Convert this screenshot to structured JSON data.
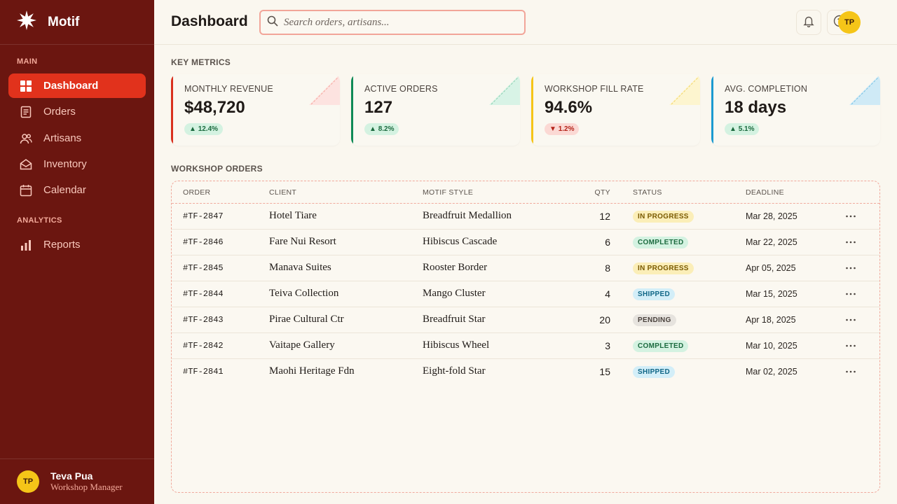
{
  "app": {
    "name": "Motif"
  },
  "sidebar": {
    "sections": {
      "main": "MAIN",
      "analytics": "ANALYTICS"
    },
    "items": [
      {
        "label": "Dashboard",
        "icon": "grid-icon",
        "active": true
      },
      {
        "label": "Orders",
        "icon": "document-icon"
      },
      {
        "label": "Artisans",
        "icon": "users-icon"
      },
      {
        "label": "Inventory",
        "icon": "envelope-icon"
      },
      {
        "label": "Calendar",
        "icon": "calendar-icon"
      },
      {
        "label": "Reports",
        "icon": "bar-chart-icon"
      }
    ],
    "user": {
      "initials": "TP",
      "name": "Teva Pua",
      "role": "Workshop Manager"
    }
  },
  "header": {
    "title": "Dashboard",
    "search_placeholder": "Search orders, artisans...",
    "avatar_initials": "TP"
  },
  "metrics": {
    "title": "KEY METRICS",
    "cards": [
      {
        "label": "MONTHLY REVENUE",
        "value": "$48,720",
        "change": "12.4%",
        "direction": "up",
        "accent": "#d9301e"
      },
      {
        "label": "ACTIVE ORDERS",
        "value": "127",
        "change": "8.2%",
        "direction": "up",
        "accent": "#0f8a56"
      },
      {
        "label": "WORKSHOP FILL RATE",
        "value": "94.6%",
        "change": "1.2%",
        "direction": "down",
        "accent": "#f5c518"
      },
      {
        "label": "AVG. COMPLETION",
        "value": "18 days",
        "change": "5.1%",
        "direction": "up",
        "accent": "#1b9ad1"
      }
    ]
  },
  "orders": {
    "title": "WORKSHOP ORDERS",
    "columns": {
      "order": "ORDER",
      "client": "CLIENT",
      "style": "MOTIF STYLE",
      "qty": "QTY",
      "status": "STATUS",
      "deadline": "DEADLINE"
    },
    "rows": [
      {
        "order": "#TF-2847",
        "client": "Hotel Tiare",
        "style": "Breadfruit Medallion",
        "qty": "12",
        "status": "IN PROGRESS",
        "status_type": "progress",
        "deadline": "Mar 28, 2025"
      },
      {
        "order": "#TF-2846",
        "client": "Fare Nui Resort",
        "style": "Hibiscus Cascade",
        "qty": "6",
        "status": "COMPLETED",
        "status_type": "completed",
        "deadline": "Mar 22, 2025"
      },
      {
        "order": "#TF-2845",
        "client": "Manava Suites",
        "style": "Rooster Border",
        "qty": "8",
        "status": "IN PROGRESS",
        "status_type": "progress",
        "deadline": "Apr 05, 2025"
      },
      {
        "order": "#TF-2844",
        "client": "Teiva Collection",
        "style": "Mango Cluster",
        "qty": "4",
        "status": "SHIPPED",
        "status_type": "shipped",
        "deadline": "Mar 15, 2025"
      },
      {
        "order": "#TF-2843",
        "client": "Pirae Cultural Ctr",
        "style": "Breadfruit Star",
        "qty": "20",
        "status": "PENDING",
        "status_type": "pending",
        "deadline": "Apr 18, 2025"
      },
      {
        "order": "#TF-2842",
        "client": "Vaitape Gallery",
        "style": "Hibiscus Wheel",
        "qty": "3",
        "status": "COMPLETED",
        "status_type": "completed",
        "deadline": "Mar 10, 2025"
      },
      {
        "order": "#TF-2841",
        "client": "Maohi Heritage Fdn",
        "style": "Eight-fold Star",
        "qty": "15",
        "status": "SHIPPED",
        "status_type": "shipped",
        "deadline": "Mar 02, 2025"
      }
    ]
  }
}
